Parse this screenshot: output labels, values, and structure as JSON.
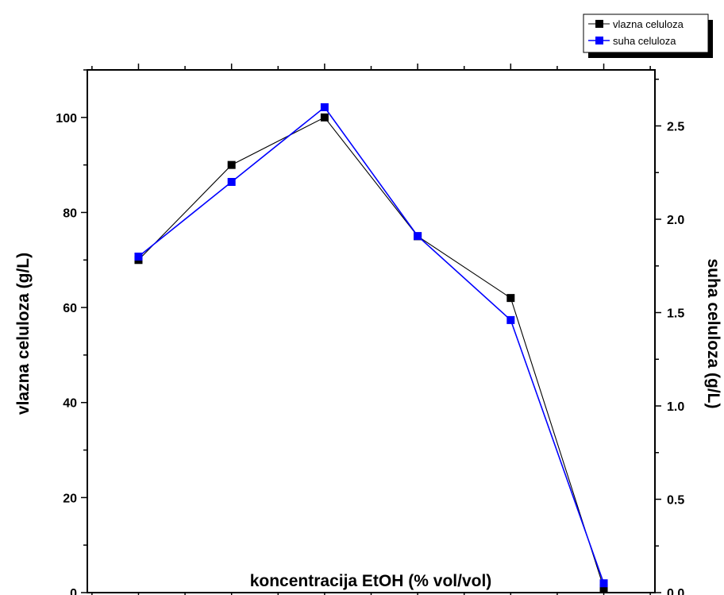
{
  "chart_data": {
    "type": "line",
    "title": "",
    "xlabel": "koncentracija EtOH (% vol/vol)",
    "ylabel": "vlazna celuloza (g/L)",
    "y2label": "suha celuloza (g/L)",
    "xlim": [
      -0.55,
      5.55
    ],
    "ylim": [
      0,
      110
    ],
    "y2lim": [
      0,
      2.8
    ],
    "x_ticks": [
      0,
      1,
      2,
      3,
      4,
      5
    ],
    "y_ticks": [
      0,
      20,
      40,
      60,
      80,
      100
    ],
    "y2_ticks": [
      0.0,
      0.5,
      1.0,
      1.5,
      2.0,
      2.5
    ],
    "y_tick_labels": [
      "0",
      "20",
      "40",
      "60",
      "80",
      "100"
    ],
    "y2_tick_labels": [
      "0.0",
      "0.5",
      "1.0",
      "1.5",
      "2.0",
      "2.5"
    ],
    "grid": false,
    "legend_position": "top-right, outside plot",
    "series": [
      {
        "name": "vlazna celuloza",
        "axis": "left",
        "color": "#000000",
        "x": [
          0,
          1,
          2,
          3,
          4,
          5
        ],
        "y": [
          70,
          90,
          100,
          75,
          62,
          1
        ]
      },
      {
        "name": "suha celuloza",
        "axis": "right",
        "color": "#0000ff",
        "x": [
          0,
          1,
          2,
          3,
          4,
          5
        ],
        "y": [
          1.8,
          2.2,
          2.6,
          1.91,
          1.46,
          0.05
        ]
      }
    ]
  }
}
